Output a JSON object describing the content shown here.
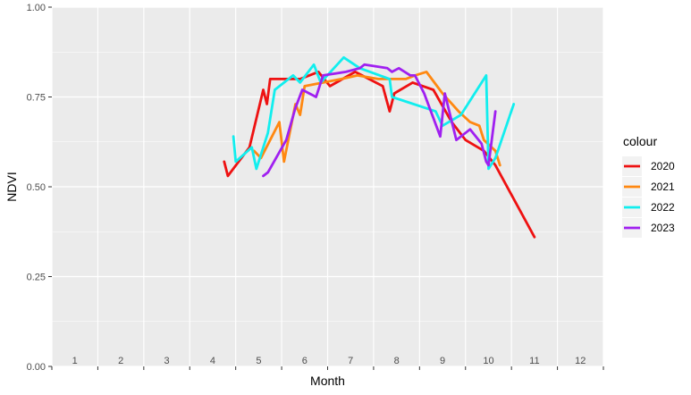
{
  "chart_data": {
    "type": "line",
    "xlabel": "Month",
    "ylabel": "NDVI",
    "xlim": [
      0.5,
      12.5
    ],
    "ylim": [
      0,
      1
    ],
    "x_tick_labels": [
      {
        "x": 1,
        "label": "1"
      },
      {
        "x": 2,
        "label": "2"
      },
      {
        "x": 3,
        "label": "3"
      },
      {
        "x": 4,
        "label": "4"
      },
      {
        "x": 5,
        "label": "5"
      },
      {
        "x": 6,
        "label": "6"
      },
      {
        "x": 7,
        "label": "7"
      },
      {
        "x": 8,
        "label": "8"
      },
      {
        "x": 9,
        "label": "9"
      },
      {
        "x": 10,
        "label": "10"
      },
      {
        "x": 11,
        "label": "11"
      },
      {
        "x": 12,
        "label": "12"
      }
    ],
    "y_ticks": [
      {
        "y": 0,
        "label": "0.00"
      },
      {
        "y": 0.25,
        "label": "0.25"
      },
      {
        "y": 0.5,
        "label": "0.50"
      },
      {
        "y": 0.75,
        "label": "0.75"
      },
      {
        "y": 1,
        "label": "1.00"
      }
    ],
    "grid": true,
    "legend": {
      "title": "colour",
      "placement": "right"
    },
    "series": [
      {
        "name": "2020",
        "color": "#ee1111",
        "points": [
          [
            4.25,
            0.57
          ],
          [
            4.33,
            0.53
          ],
          [
            4.8,
            0.61
          ],
          [
            5.1,
            0.77
          ],
          [
            5.18,
            0.73
          ],
          [
            5.25,
            0.8
          ],
          [
            5.9,
            0.8
          ],
          [
            6.3,
            0.82
          ],
          [
            6.55,
            0.78
          ],
          [
            7.1,
            0.82
          ],
          [
            7.7,
            0.78
          ],
          [
            7.85,
            0.71
          ],
          [
            7.95,
            0.76
          ],
          [
            8.35,
            0.79
          ],
          [
            8.8,
            0.77
          ],
          [
            9.2,
            0.68
          ],
          [
            9.5,
            0.63
          ],
          [
            9.9,
            0.6
          ],
          [
            10.15,
            0.56
          ],
          [
            11.0,
            0.36
          ]
        ]
      },
      {
        "name": "2021",
        "color": "#ff8811",
        "points": [
          [
            4.9,
            0.6
          ],
          [
            5.05,
            0.58
          ],
          [
            5.45,
            0.68
          ],
          [
            5.55,
            0.57
          ],
          [
            5.8,
            0.73
          ],
          [
            5.9,
            0.7
          ],
          [
            6.0,
            0.78
          ],
          [
            6.4,
            0.79
          ],
          [
            6.8,
            0.8
          ],
          [
            7.15,
            0.81
          ],
          [
            7.6,
            0.8
          ],
          [
            8.2,
            0.8
          ],
          [
            8.4,
            0.81
          ],
          [
            8.65,
            0.82
          ],
          [
            9.0,
            0.76
          ],
          [
            9.35,
            0.71
          ],
          [
            9.6,
            0.68
          ],
          [
            9.8,
            0.67
          ],
          [
            9.9,
            0.63
          ],
          [
            10.15,
            0.6
          ],
          [
            10.25,
            0.56
          ]
        ]
      },
      {
        "name": "2022",
        "color": "#11eeee",
        "points": [
          [
            4.45,
            0.64
          ],
          [
            4.5,
            0.57
          ],
          [
            4.85,
            0.61
          ],
          [
            4.95,
            0.55
          ],
          [
            5.2,
            0.65
          ],
          [
            5.35,
            0.77
          ],
          [
            5.75,
            0.81
          ],
          [
            5.9,
            0.79
          ],
          [
            6.2,
            0.84
          ],
          [
            6.35,
            0.79
          ],
          [
            6.85,
            0.86
          ],
          [
            7.2,
            0.83
          ],
          [
            7.85,
            0.8
          ],
          [
            7.9,
            0.75
          ],
          [
            8.85,
            0.71
          ],
          [
            9.0,
            0.67
          ],
          [
            9.4,
            0.7
          ],
          [
            9.75,
            0.77
          ],
          [
            9.95,
            0.81
          ],
          [
            10.0,
            0.55
          ],
          [
            10.15,
            0.58
          ],
          [
            10.55,
            0.73
          ]
        ]
      },
      {
        "name": "2023",
        "color": "#a020f0",
        "points": [
          [
            5.1,
            0.53
          ],
          [
            5.2,
            0.54
          ],
          [
            5.6,
            0.63
          ],
          [
            5.8,
            0.72
          ],
          [
            5.95,
            0.77
          ],
          [
            6.25,
            0.75
          ],
          [
            6.4,
            0.81
          ],
          [
            6.9,
            0.82
          ],
          [
            7.2,
            0.83
          ],
          [
            7.3,
            0.84
          ],
          [
            7.8,
            0.83
          ],
          [
            7.9,
            0.82
          ],
          [
            8.05,
            0.83
          ],
          [
            8.3,
            0.81
          ],
          [
            8.4,
            0.81
          ],
          [
            8.6,
            0.76
          ],
          [
            8.95,
            0.64
          ],
          [
            9.05,
            0.76
          ],
          [
            9.3,
            0.63
          ],
          [
            9.6,
            0.66
          ],
          [
            9.85,
            0.62
          ],
          [
            9.95,
            0.57
          ],
          [
            10.0,
            0.56
          ],
          [
            10.15,
            0.71
          ]
        ]
      }
    ]
  }
}
